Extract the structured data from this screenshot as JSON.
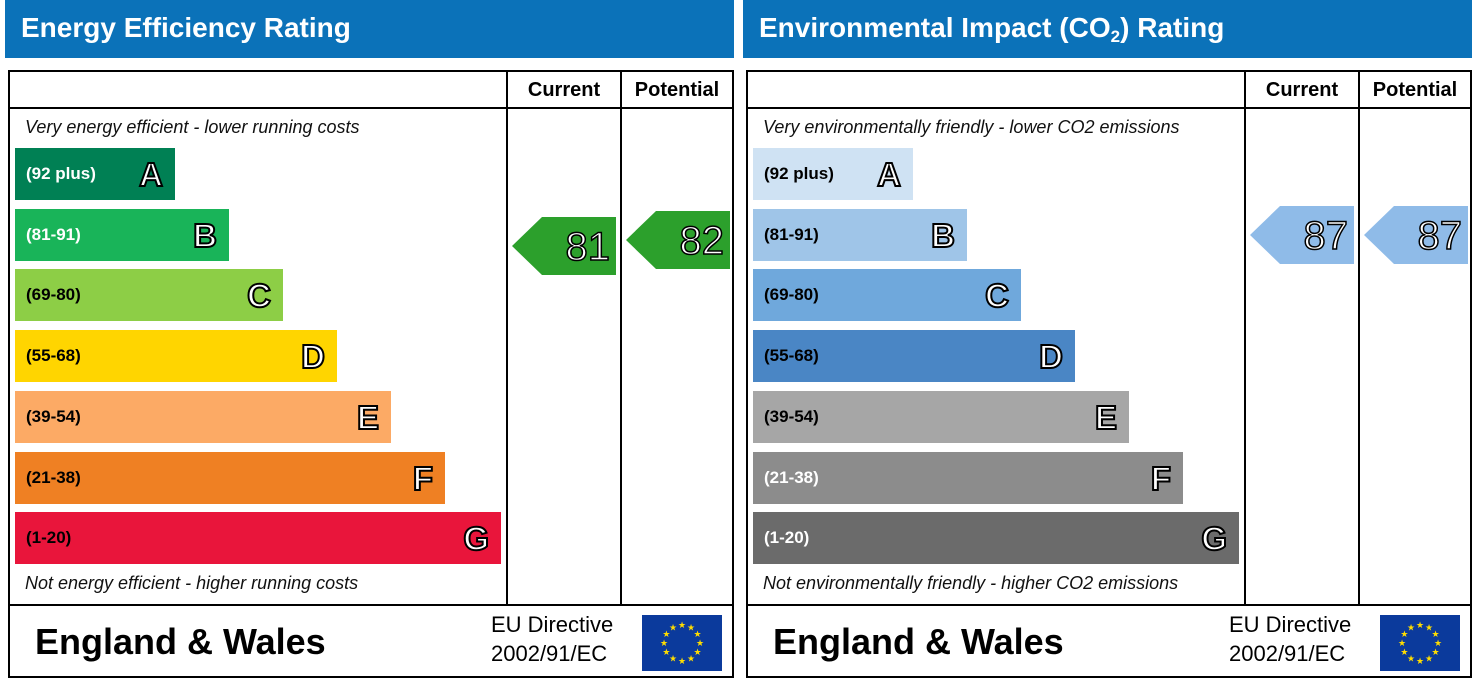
{
  "panels": [
    {
      "title": "Energy Efficiency Rating",
      "title_sub": "",
      "title_suffix": "",
      "col_current": "Current",
      "col_potential": "Potential",
      "top_note": "Very energy efficient - lower running costs",
      "bottom_note": "Not energy efficient - higher running costs",
      "footer_country": "England & Wales",
      "footer_directive_line1": "EU Directive",
      "footer_directive_line2": "2002/91/EC",
      "bands": [
        {
          "range": "(92 plus)",
          "letter": "A",
          "color": "#008054",
          "text_color": "#ffffff"
        },
        {
          "range": "(81-91)",
          "letter": "B",
          "color": "#19b459",
          "text_color": "#ffffff"
        },
        {
          "range": "(69-80)",
          "letter": "C",
          "color": "#8dce46",
          "text_color": "#000000"
        },
        {
          "range": "(55-68)",
          "letter": "D",
          "color": "#ffd500",
          "text_color": "#000000"
        },
        {
          "range": "(39-54)",
          "letter": "E",
          "color": "#fcaa65",
          "text_color": "#000000"
        },
        {
          "range": "(21-38)",
          "letter": "F",
          "color": "#ef8023",
          "text_color": "#000000"
        },
        {
          "range": "(1-20)",
          "letter": "G",
          "color": "#e9153b",
          "text_color": "#000000"
        }
      ],
      "current": {
        "value": "81",
        "band": "B",
        "color": "#2ca02c"
      },
      "potential": {
        "value": "82",
        "band": "B",
        "color": "#2ca02c"
      }
    },
    {
      "title": "Environmental Impact (CO",
      "title_sub": "2",
      "title_suffix": ") Rating",
      "col_current": "Current",
      "col_potential": "Potential",
      "top_note": "Very environmentally friendly - lower CO2 emissions",
      "bottom_note": "Not environmentally friendly - higher CO2 emissions",
      "footer_country": "England & Wales",
      "footer_directive_line1": "EU Directive",
      "footer_directive_line2": "2002/91/EC",
      "bands": [
        {
          "range": "(92 plus)",
          "letter": "A",
          "color": "#cfe2f3",
          "text_color": "#000000"
        },
        {
          "range": "(81-91)",
          "letter": "B",
          "color": "#9fc5e8",
          "text_color": "#000000"
        },
        {
          "range": "(69-80)",
          "letter": "C",
          "color": "#6fa8dc",
          "text_color": "#000000"
        },
        {
          "range": "(55-68)",
          "letter": "D",
          "color": "#4a86c5",
          "text_color": "#000000"
        },
        {
          "range": "(39-54)",
          "letter": "E",
          "color": "#a6a6a6",
          "text_color": "#000000"
        },
        {
          "range": "(21-38)",
          "letter": "F",
          "color": "#8c8c8c",
          "text_color": "#ffffff"
        },
        {
          "range": "(1-20)",
          "letter": "G",
          "color": "#6b6b6b",
          "text_color": "#ffffff"
        }
      ],
      "current": {
        "value": "87",
        "band": "B",
        "color": "#8fbbe8"
      },
      "potential": {
        "value": "87",
        "band": "B",
        "color": "#8fbbe8"
      }
    }
  ],
  "chart_data": [
    {
      "type": "bar",
      "title": "Energy Efficiency Rating",
      "categories": [
        "A",
        "B",
        "C",
        "D",
        "E",
        "F",
        "G"
      ],
      "category_ranges": [
        "(92 plus)",
        "(81-91)",
        "(69-80)",
        "(55-68)",
        "(39-54)",
        "(21-38)",
        "(1-20)"
      ],
      "current": 81,
      "potential": 82
    },
    {
      "type": "bar",
      "title": "Environmental Impact (CO2) Rating",
      "categories": [
        "A",
        "B",
        "C",
        "D",
        "E",
        "F",
        "G"
      ],
      "category_ranges": [
        "(92 plus)",
        "(81-91)",
        "(69-80)",
        "(55-68)",
        "(39-54)",
        "(21-38)",
        "(1-20)"
      ],
      "current": 87,
      "potential": 87
    }
  ]
}
